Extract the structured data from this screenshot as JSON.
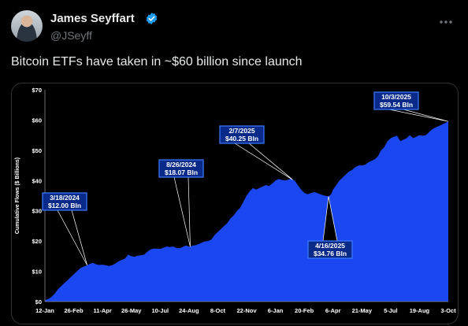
{
  "post": {
    "author_name": "James Seyffart",
    "author_handle": "@JSeyff",
    "text": "Bitcoin ETFs have taken in ~$60 billion since launch",
    "icons": {
      "avatar": "profile-photo",
      "verified": "verified-badge-icon",
      "more": "more-options-icon"
    },
    "colors": {
      "verified": "#1d9bf0",
      "handle": "#71767b"
    }
  },
  "chart_data": {
    "type": "area",
    "title": "",
    "xlabel": "",
    "ylabel": "Cumulative Flows ($ Billions)",
    "ylim": [
      0,
      70
    ],
    "y_ticks": [
      "$0",
      "$10",
      "$20",
      "$30",
      "$40",
      "$50",
      "$60",
      "$70"
    ],
    "y_tick_values": [
      0,
      10,
      20,
      30,
      40,
      50,
      60,
      70
    ],
    "x_tick_labels": [
      "12-Jan",
      "26-Feb",
      "11-Apr",
      "26-May",
      "10-Jul",
      "24-Aug",
      "8-Oct",
      "22-Nov",
      "6-Jan",
      "20-Feb",
      "6-Apr",
      "21-May",
      "5-Jul",
      "19-Aug",
      "3-Oct"
    ],
    "x_tick_days": [
      0,
      45,
      90,
      135,
      180,
      225,
      270,
      315,
      360,
      405,
      450,
      495,
      540,
      585,
      630
    ],
    "xlim_days": [
      0,
      630
    ],
    "series": [
      {
        "color": "#1a47f0",
        "points": [
          [
            0,
            0.5
          ],
          [
            5,
            0.8
          ],
          [
            10,
            1.5
          ],
          [
            15,
            2.5
          ],
          [
            20,
            4.0
          ],
          [
            25,
            5.0
          ],
          [
            30,
            6.0
          ],
          [
            35,
            7.0
          ],
          [
            40,
            8.0
          ],
          [
            45,
            9.0
          ],
          [
            50,
            10.0
          ],
          [
            55,
            11.0
          ],
          [
            60,
            11.5
          ],
          [
            66,
            12.0
          ],
          [
            70,
            12.4
          ],
          [
            75,
            12.8
          ],
          [
            80,
            12.3
          ],
          [
            85,
            12.1
          ],
          [
            90,
            12.2
          ],
          [
            95,
            12.0
          ],
          [
            100,
            11.8
          ],
          [
            105,
            12.0
          ],
          [
            110,
            12.6
          ],
          [
            115,
            13.3
          ],
          [
            120,
            13.8
          ],
          [
            125,
            14.2
          ],
          [
            130,
            15.5
          ],
          [
            135,
            15.0
          ],
          [
            140,
            14.8
          ],
          [
            145,
            15.2
          ],
          [
            150,
            15.3
          ],
          [
            155,
            15.5
          ],
          [
            160,
            16.5
          ],
          [
            165,
            17.2
          ],
          [
            170,
            17.5
          ],
          [
            175,
            17.5
          ],
          [
            180,
            17.4
          ],
          [
            185,
            17.8
          ],
          [
            190,
            18.2
          ],
          [
            195,
            18.0
          ],
          [
            200,
            18.2
          ],
          [
            205,
            17.8
          ],
          [
            210,
            17.6
          ],
          [
            215,
            18.0
          ],
          [
            220,
            18.5
          ],
          [
            227,
            18.1
          ],
          [
            230,
            18.5
          ],
          [
            235,
            18.6
          ],
          [
            240,
            19.0
          ],
          [
            245,
            19.5
          ],
          [
            250,
            19.9
          ],
          [
            255,
            20.0
          ],
          [
            260,
            20.5
          ],
          [
            265,
            22.0
          ],
          [
            270,
            23.0
          ],
          [
            275,
            24.0
          ],
          [
            280,
            25.0
          ],
          [
            285,
            26.0
          ],
          [
            290,
            27.5
          ],
          [
            295,
            28.5
          ],
          [
            300,
            30.0
          ],
          [
            305,
            31.0
          ],
          [
            310,
            33.0
          ],
          [
            315,
            35.0
          ],
          [
            320,
            36.5
          ],
          [
            325,
            37.5
          ],
          [
            330,
            37.0
          ],
          [
            335,
            37.5
          ],
          [
            340,
            38.0
          ],
          [
            345,
            38.5
          ],
          [
            350,
            38.2
          ],
          [
            355,
            39.0
          ],
          [
            360,
            40.0
          ],
          [
            365,
            40.5
          ],
          [
            370,
            40.2
          ],
          [
            375,
            40.0
          ],
          [
            380,
            40.3
          ],
          [
            383,
            40.6
          ],
          [
            387,
            40.25
          ],
          [
            390,
            40.0
          ],
          [
            395,
            38.5
          ],
          [
            400,
            37.0
          ],
          [
            405,
            36.0
          ],
          [
            410,
            35.5
          ],
          [
            415,
            35.8
          ],
          [
            420,
            36.2
          ],
          [
            425,
            35.9
          ],
          [
            430,
            35.5
          ],
          [
            435,
            35.1
          ],
          [
            440,
            34.9
          ],
          [
            443,
            34.76
          ],
          [
            447,
            35.5
          ],
          [
            450,
            37.0
          ],
          [
            455,
            38.5
          ],
          [
            460,
            40.0
          ],
          [
            465,
            41.0
          ],
          [
            470,
            42.0
          ],
          [
            475,
            43.0
          ],
          [
            480,
            43.5
          ],
          [
            485,
            44.5
          ],
          [
            490,
            45.0
          ],
          [
            495,
            45.0
          ],
          [
            500,
            45.2
          ],
          [
            505,
            46.0
          ],
          [
            510,
            46.5
          ],
          [
            515,
            47.0
          ],
          [
            520,
            48.0
          ],
          [
            525,
            50.0
          ],
          [
            530,
            51.0
          ],
          [
            535,
            53.0
          ],
          [
            540,
            54.0
          ],
          [
            545,
            54.5
          ],
          [
            550,
            54.8
          ],
          [
            555,
            53.0
          ],
          [
            560,
            53.5
          ],
          [
            565,
            54.0
          ],
          [
            570,
            55.0
          ],
          [
            575,
            54.0
          ],
          [
            580,
            54.5
          ],
          [
            585,
            55.0
          ],
          [
            590,
            54.8
          ],
          [
            595,
            55.0
          ],
          [
            600,
            56.0
          ],
          [
            605,
            57.0
          ],
          [
            610,
            57.5
          ],
          [
            615,
            58.0
          ],
          [
            620,
            58.5
          ],
          [
            625,
            59.0
          ],
          [
            630,
            59.54
          ]
        ]
      }
    ],
    "annotations": [
      {
        "date_label": "3/18/2024",
        "value_label": "$12.00 Bln",
        "day": 66,
        "value": 12.0
      },
      {
        "date_label": "8/26/2024",
        "value_label": "$18.07 Bln",
        "day": 227,
        "value": 18.07
      },
      {
        "date_label": "2/7/2025",
        "value_label": "$40.25 Bln",
        "day": 387,
        "value": 40.25
      },
      {
        "date_label": "4/16/2025",
        "value_label": "$34.76 Bln",
        "day": 443,
        "value": 34.76
      },
      {
        "date_label": "10/3/2025",
        "value_label": "$59.54 Bln",
        "day": 630,
        "value": 59.54
      }
    ],
    "grid": false,
    "legend": "none",
    "colors": {
      "fill": "#1a47f0",
      "background": "#000000",
      "callout_bg": "#0a2a8a",
      "callout_border": "#3d7bff",
      "text": "#ffffff"
    }
  }
}
